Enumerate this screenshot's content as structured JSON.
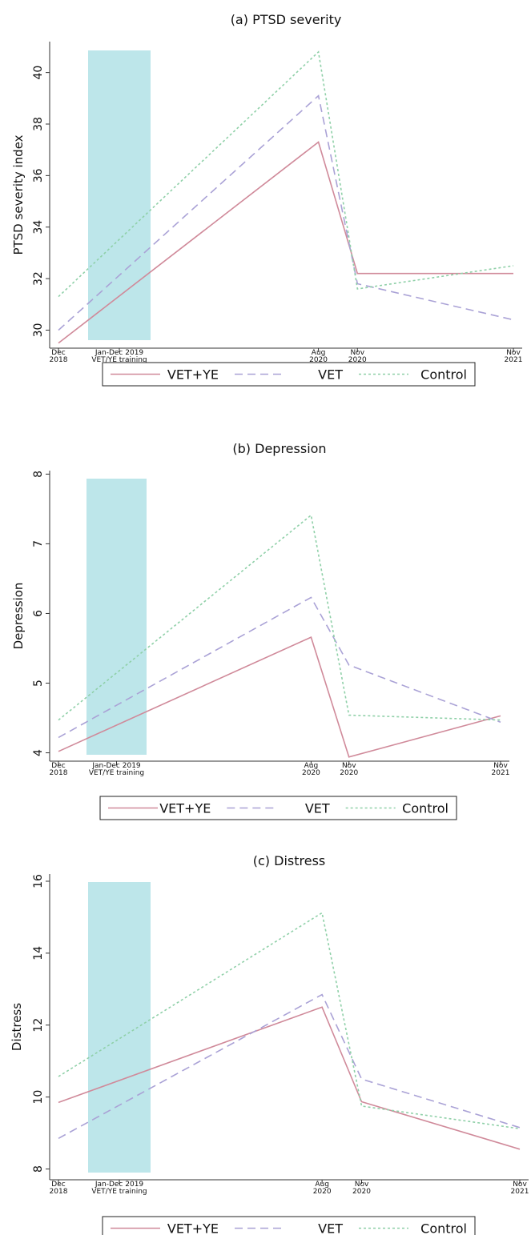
{
  "chart_data": [
    {
      "type": "line",
      "title": "(a) PTSD severity",
      "ylabel": "PTSD severity index",
      "xlabel": "",
      "x_ticks": [
        {
          "lines": [
            "Dec",
            "2018"
          ],
          "date": "2018-12"
        },
        {
          "lines": [
            "Aug",
            "2020"
          ],
          "date": "2020-08"
        },
        {
          "lines": [
            "Nov",
            "2020"
          ],
          "date": "2020-11"
        },
        {
          "lines": [
            "Nov",
            "2021"
          ],
          "date": "2021-11"
        }
      ],
      "y_ticks": [
        30,
        32,
        34,
        36,
        38,
        40
      ],
      "ylim": [
        29.3,
        41.2
      ],
      "training_band": {
        "label_lines": [
          "Jan-Dec 2019",
          "VET/YE training"
        ],
        "start": "2019-01",
        "end": "2019-12"
      },
      "series": [
        {
          "name": "VET+YE",
          "style": "solid",
          "color": "#d08a9a",
          "x": [
            "2018-12",
            "2020-08",
            "2020-11",
            "2021-11"
          ],
          "values": [
            29.5,
            37.3,
            32.2,
            32.2
          ]
        },
        {
          "name": "VET",
          "style": "dashed",
          "color": "#aaa2d6",
          "x": [
            "2018-12",
            "2020-08",
            "2020-11",
            "2021-11"
          ],
          "values": [
            30.0,
            39.1,
            31.8,
            30.4
          ]
        },
        {
          "name": "Control",
          "style": "dotted",
          "color": "#8fd0a8",
          "x": [
            "2018-12",
            "2020-08",
            "2020-11",
            "2021-11"
          ],
          "values": [
            31.3,
            40.8,
            31.6,
            32.5
          ]
        }
      ],
      "legend": "bottom"
    },
    {
      "type": "line",
      "title": "(b) Depression",
      "ylabel": "Depression",
      "xlabel": "",
      "x_ticks": [
        {
          "lines": [
            "Dec",
            "2018"
          ],
          "date": "2018-12"
        },
        {
          "lines": [
            "Aug",
            "2020"
          ],
          "date": "2020-08"
        },
        {
          "lines": [
            "Nov",
            "2020"
          ],
          "date": "2020-11"
        },
        {
          "lines": [
            "Nov",
            "2021"
          ],
          "date": "2021-11"
        }
      ],
      "y_ticks": [
        4,
        5,
        6,
        7,
        8
      ],
      "ylim": [
        3.88,
        8.05
      ],
      "training_band": {
        "label_lines": [
          "Jan-Dec 2019",
          "VET/YE training"
        ],
        "start": "2019-01",
        "end": "2019-12"
      },
      "series": [
        {
          "name": "VET+YE",
          "style": "solid",
          "color": "#d08a9a",
          "x": [
            "2018-12",
            "2020-08",
            "2020-11",
            "2021-11"
          ],
          "values": [
            4.02,
            5.66,
            3.94,
            4.53
          ]
        },
        {
          "name": "VET",
          "style": "dashed",
          "color": "#aaa2d6",
          "x": [
            "2018-12",
            "2020-08",
            "2020-11",
            "2021-11"
          ],
          "values": [
            4.22,
            6.23,
            5.26,
            4.44
          ]
        },
        {
          "name": "Control",
          "style": "dotted",
          "color": "#8fd0a8",
          "x": [
            "2018-12",
            "2020-08",
            "2020-11",
            "2021-11"
          ],
          "values": [
            4.47,
            7.41,
            4.54,
            4.47
          ]
        }
      ],
      "legend": "bottom"
    },
    {
      "type": "line",
      "title": "(c) Distress",
      "ylabel": "Distress",
      "xlabel": "",
      "x_ticks": [
        {
          "lines": [
            "Dec",
            "2018"
          ],
          "date": "2018-12"
        },
        {
          "lines": [
            "Aug",
            "2020"
          ],
          "date": "2020-08"
        },
        {
          "lines": [
            "Nov",
            "2020"
          ],
          "date": "2020-11"
        },
        {
          "lines": [
            "Nov",
            "2021"
          ],
          "date": "2021-11"
        }
      ],
      "y_ticks": [
        8,
        10,
        12,
        14,
        16
      ],
      "ylim": [
        7.7,
        16.2
      ],
      "training_band": {
        "label_lines": [
          "Jan-Dec 2019",
          "VET/YE training"
        ],
        "start": "2019-01",
        "end": "2019-12"
      },
      "series": [
        {
          "name": "VET+YE",
          "style": "solid",
          "color": "#d08a9a",
          "x": [
            "2018-12",
            "2020-08",
            "2020-11",
            "2021-11"
          ],
          "values": [
            9.85,
            12.5,
            9.87,
            8.55
          ]
        },
        {
          "name": "VET",
          "style": "dashed",
          "color": "#aaa2d6",
          "x": [
            "2018-12",
            "2020-08",
            "2020-11",
            "2021-11"
          ],
          "values": [
            8.85,
            12.85,
            10.5,
            9.15
          ]
        },
        {
          "name": "Control",
          "style": "dotted",
          "color": "#8fd0a8",
          "x": [
            "2018-12",
            "2020-08",
            "2020-11",
            "2021-11"
          ],
          "values": [
            10.57,
            15.12,
            9.75,
            9.12
          ]
        }
      ],
      "legend": "bottom"
    }
  ],
  "colors": {
    "band": "#bde6ea",
    "axis": "#333333"
  }
}
